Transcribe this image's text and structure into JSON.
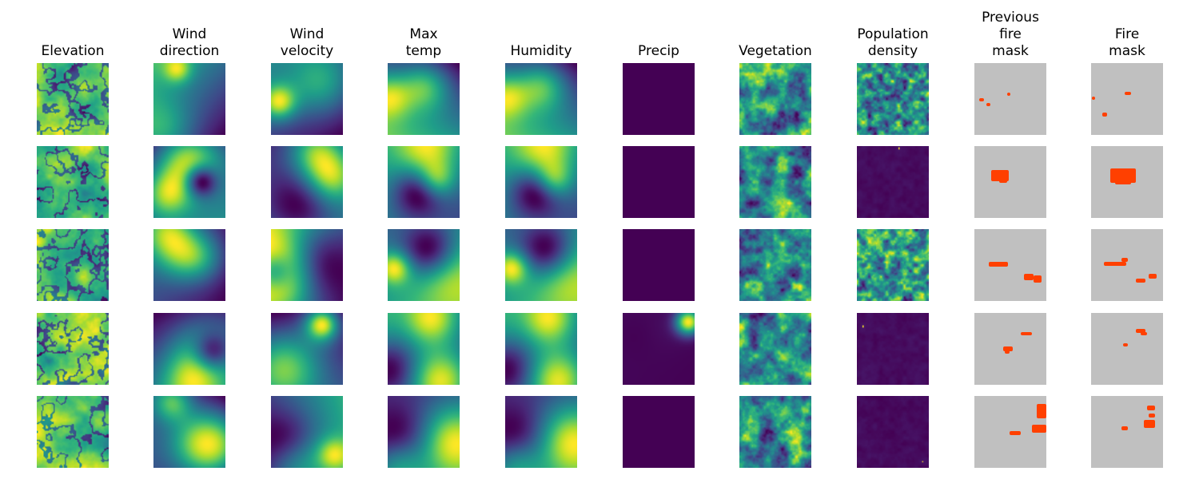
{
  "chart_data": {
    "type": "heatmap",
    "title": "",
    "layout": "grid of 5 samples (rows) x 10 feature channels (columns)",
    "colormap": "viridis",
    "fire_mask_colors": {
      "no_fire": "#c0c0c0",
      "fire": "#ff4000"
    },
    "columns": [
      {
        "key": "elevation",
        "label": "Elevation"
      },
      {
        "key": "wind_direction",
        "label": "Wind\ndirection"
      },
      {
        "key": "wind_velocity",
        "label": "Wind\nvelocity"
      },
      {
        "key": "max_temp",
        "label": "Max\ntemp"
      },
      {
        "key": "humidity",
        "label": "Humidity"
      },
      {
        "key": "precip",
        "label": "Precip"
      },
      {
        "key": "vegetation",
        "label": "Vegetation"
      },
      {
        "key": "population_density",
        "label": "Population\ndensity"
      },
      {
        "key": "previous_fire_mask",
        "label": "Previous\nfire\nmask"
      },
      {
        "key": "fire_mask",
        "label": "Fire\nmask"
      }
    ],
    "rows": 5
  }
}
